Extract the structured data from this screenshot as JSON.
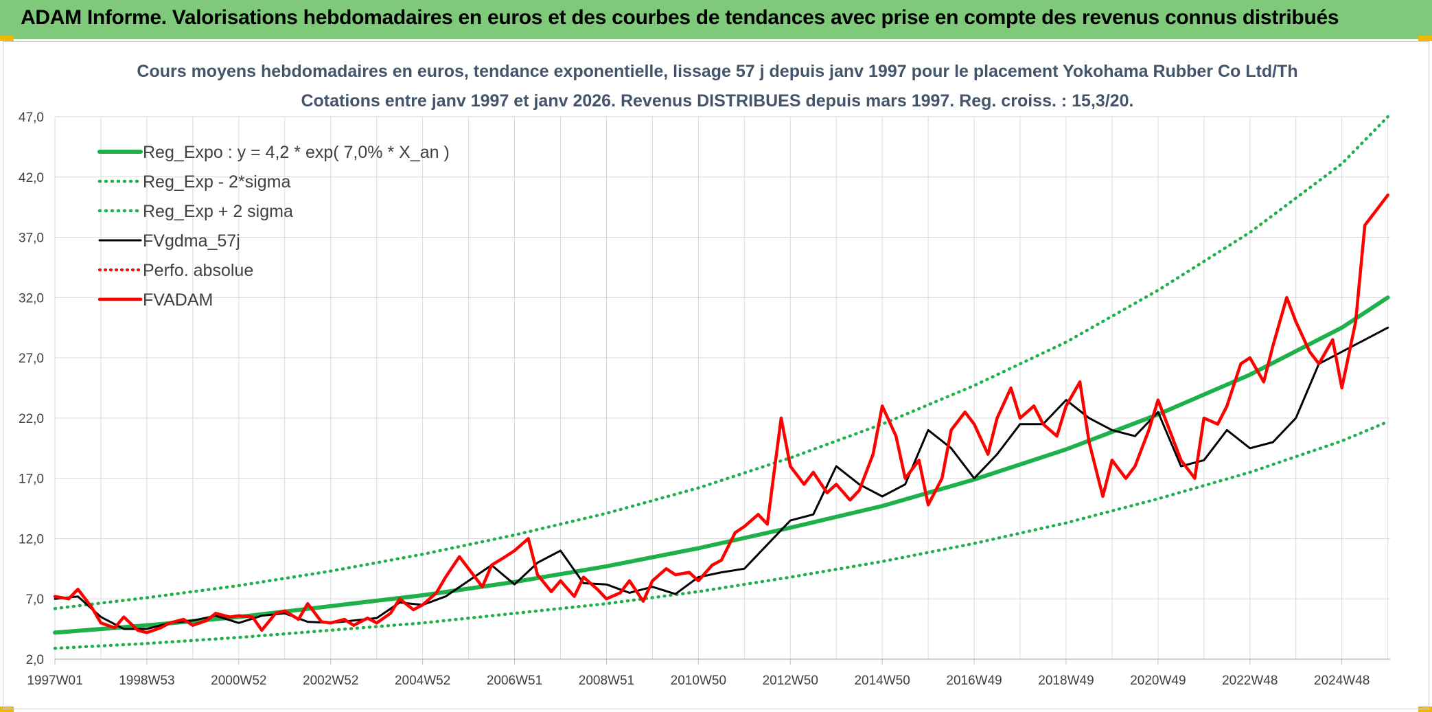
{
  "header": {
    "title": "ADAM Informe. Valorisations hebdomadaires en euros et des courbes de tendances avec prise en compte des revenus connus distribués"
  },
  "colors": {
    "banner": "#7fc97a",
    "green": "#1eb04b",
    "red": "#ff0000",
    "black": "#000000",
    "grid": "#d9d9d9"
  },
  "chart_data": {
    "type": "line",
    "title": "Cours moyens hebdomadaires en euros, tendance exponentielle, lissage 57 j depuis janv 1997 pour le placement Yokohama Rubber Co Ltd/Th",
    "subtitle": "Cotations entre janv 1997 et janv 2026. Revenus DISTRIBUES depuis mars 1997. Reg. croiss. : 15,3/20.",
    "xlabel": "",
    "ylabel": "",
    "x_range": [
      1997.0,
      2026.05
    ],
    "ylim": [
      2.0,
      47.0
    ],
    "y_ticks": [
      "2,0",
      "7,0",
      "12,0",
      "17,0",
      "22,0",
      "27,0",
      "32,0",
      "37,0",
      "42,0",
      "47,0"
    ],
    "y_tick_values": [
      2,
      7,
      12,
      17,
      22,
      27,
      32,
      37,
      42,
      47
    ],
    "x_tick_labels": [
      "1997W01",
      "1998W53",
      "2000W52",
      "2002W52",
      "2004W52",
      "2006W51",
      "2008W51",
      "2010W50",
      "2012W50",
      "2014W50",
      "2016W49",
      "2018W49",
      "2020W49",
      "2022W48",
      "2024W48"
    ],
    "x_tick_values": [
      1997.0,
      1999.0,
      2001.0,
      2003.0,
      2005.0,
      2007.0,
      2009.0,
      2011.0,
      2013.0,
      2015.0,
      2017.0,
      2019.0,
      2021.0,
      2023.0,
      2025.0
    ],
    "grid": true,
    "legend_position": "top-left",
    "series": [
      {
        "name": "Reg_Expo : y = 4,2 * exp( 7,0% *  X_an )",
        "style": "solid-green",
        "x": [
          1997,
          1999,
          2001,
          2003,
          2005,
          2007,
          2009,
          2011,
          2013,
          2015,
          2017,
          2019,
          2021,
          2023,
          2025,
          2026
        ],
        "values": [
          4.2,
          4.8,
          5.5,
          6.4,
          7.3,
          8.4,
          9.7,
          11.2,
          12.9,
          14.7,
          16.9,
          19.4,
          22.3,
          25.6,
          29.5,
          32.0
        ]
      },
      {
        "name": "Reg_Exp - 2*sigma",
        "style": "dotted-green",
        "x": [
          1997,
          1999,
          2001,
          2003,
          2005,
          2007,
          2009,
          2011,
          2013,
          2015,
          2017,
          2019,
          2021,
          2023,
          2025,
          2026
        ],
        "values": [
          2.9,
          3.3,
          3.8,
          4.4,
          5.0,
          5.8,
          6.6,
          7.6,
          8.8,
          10.1,
          11.6,
          13.3,
          15.3,
          17.5,
          20.1,
          21.7
        ]
      },
      {
        "name": "Reg_Exp + 2 sigma",
        "style": "dotted-green",
        "x": [
          1997,
          1999,
          2001,
          2003,
          2005,
          2007,
          2009,
          2011,
          2013,
          2015,
          2017,
          2019,
          2021,
          2023,
          2025,
          2026
        ],
        "values": [
          6.2,
          7.1,
          8.1,
          9.3,
          10.7,
          12.3,
          14.1,
          16.2,
          18.7,
          21.5,
          24.7,
          28.3,
          32.6,
          37.4,
          43.1,
          47.0
        ]
      },
      {
        "name": "FVgdma_57j",
        "style": "solid-black",
        "x": [
          1997.0,
          1997.5,
          1998.0,
          1998.5,
          1999.0,
          1999.5,
          2000.0,
          2000.5,
          2001.0,
          2001.5,
          2002.0,
          2002.5,
          2003.0,
          2003.5,
          2004.0,
          2004.5,
          2005.0,
          2005.5,
          2006.0,
          2006.5,
          2007.0,
          2007.5,
          2008.0,
          2008.5,
          2009.0,
          2009.5,
          2010.0,
          2010.5,
          2011.0,
          2011.5,
          2012.0,
          2012.5,
          2013.0,
          2013.5,
          2014.0,
          2014.5,
          2015.0,
          2015.5,
          2016.0,
          2016.5,
          2017.0,
          2017.5,
          2018.0,
          2018.5,
          2019.0,
          2019.5,
          2020.0,
          2020.5,
          2021.0,
          2021.5,
          2022.0,
          2022.5,
          2023.0,
          2023.5,
          2024.0,
          2024.5,
          2025.0,
          2025.5,
          2026.0
        ],
        "values": [
          7.0,
          7.2,
          5.5,
          4.5,
          4.5,
          5.0,
          5.2,
          5.6,
          5.0,
          5.6,
          5.8,
          5.1,
          5.0,
          5.2,
          5.4,
          6.7,
          6.5,
          7.2,
          8.5,
          9.8,
          8.2,
          10.0,
          11.0,
          8.3,
          8.2,
          7.5,
          8.0,
          7.4,
          8.8,
          9.2,
          9.5,
          11.5,
          13.5,
          14.0,
          18.0,
          16.5,
          15.5,
          16.5,
          21.0,
          19.5,
          17.0,
          19.0,
          21.5,
          21.5,
          23.5,
          22.0,
          21.0,
          20.5,
          22.5,
          18.0,
          18.5,
          21.0,
          19.5,
          20.0,
          22.0,
          26.5,
          27.5,
          28.5,
          29.5
        ]
      },
      {
        "name": "Perfo. absolue",
        "style": "dotted-red",
        "x": [],
        "values": []
      },
      {
        "name": "FVADAM",
        "style": "solid-red",
        "x": [
          1997.0,
          1997.3,
          1997.5,
          1997.8,
          1998.0,
          1998.3,
          1998.5,
          1998.8,
          1999.0,
          1999.3,
          1999.5,
          1999.8,
          2000.0,
          2000.3,
          2000.5,
          2000.8,
          2001.0,
          2001.3,
          2001.5,
          2001.8,
          2002.0,
          2002.3,
          2002.5,
          2002.8,
          2003.0,
          2003.3,
          2003.5,
          2003.8,
          2004.0,
          2004.3,
          2004.5,
          2004.8,
          2005.0,
          2005.3,
          2005.5,
          2005.8,
          2006.0,
          2006.3,
          2006.5,
          2006.8,
          2007.0,
          2007.3,
          2007.5,
          2007.8,
          2008.0,
          2008.3,
          2008.5,
          2008.8,
          2009.0,
          2009.3,
          2009.5,
          2009.8,
          2010.0,
          2010.3,
          2010.5,
          2010.8,
          2011.0,
          2011.3,
          2011.5,
          2011.8,
          2012.0,
          2012.3,
          2012.5,
          2012.8,
          2013.0,
          2013.3,
          2013.5,
          2013.8,
          2014.0,
          2014.3,
          2014.5,
          2014.8,
          2015.0,
          2015.3,
          2015.5,
          2015.8,
          2016.0,
          2016.3,
          2016.5,
          2016.8,
          2017.0,
          2017.3,
          2017.5,
          2017.8,
          2018.0,
          2018.3,
          2018.5,
          2018.8,
          2019.0,
          2019.3,
          2019.5,
          2019.8,
          2020.0,
          2020.3,
          2020.5,
          2020.8,
          2021.0,
          2021.3,
          2021.5,
          2021.8,
          2022.0,
          2022.3,
          2022.5,
          2022.8,
          2023.0,
          2023.3,
          2023.5,
          2023.8,
          2024.0,
          2024.3,
          2024.5,
          2024.8,
          2025.0,
          2025.3,
          2025.5,
          2025.8,
          2026.0
        ],
        "values": [
          7.2,
          7.0,
          7.8,
          6.3,
          5.0,
          4.6,
          5.5,
          4.4,
          4.2,
          4.6,
          5.0,
          5.3,
          4.8,
          5.2,
          5.8,
          5.5,
          5.6,
          5.5,
          4.4,
          5.8,
          6.0,
          5.3,
          6.6,
          5.1,
          5.0,
          5.3,
          4.8,
          5.4,
          5.0,
          5.8,
          7.0,
          6.1,
          6.5,
          7.5,
          8.8,
          10.5,
          9.5,
          8.0,
          9.8,
          10.5,
          11.0,
          12.0,
          9.0,
          7.6,
          8.5,
          7.2,
          8.8,
          7.8,
          7.0,
          7.5,
          8.5,
          6.8,
          8.5,
          9.5,
          9.0,
          9.2,
          8.5,
          9.8,
          10.2,
          12.5,
          13.0,
          14.0,
          13.2,
          22.0,
          18.0,
          16.5,
          17.5,
          15.8,
          16.5,
          15.2,
          16.0,
          19.0,
          23.0,
          20.5,
          17.0,
          18.5,
          14.8,
          17.0,
          21.0,
          22.5,
          21.5,
          19.0,
          22.0,
          24.5,
          22.0,
          23.0,
          21.5,
          20.5,
          23.0,
          25.0,
          20.0,
          15.5,
          18.5,
          17.0,
          18.0,
          21.0,
          23.5,
          20.5,
          18.5,
          17.0,
          22.0,
          21.5,
          23.0,
          26.5,
          27.0,
          25.0,
          28.0,
          32.0,
          30.0,
          27.5,
          26.5,
          28.5,
          24.5,
          30.0,
          38.0,
          39.5,
          40.5
        ]
      }
    ]
  }
}
